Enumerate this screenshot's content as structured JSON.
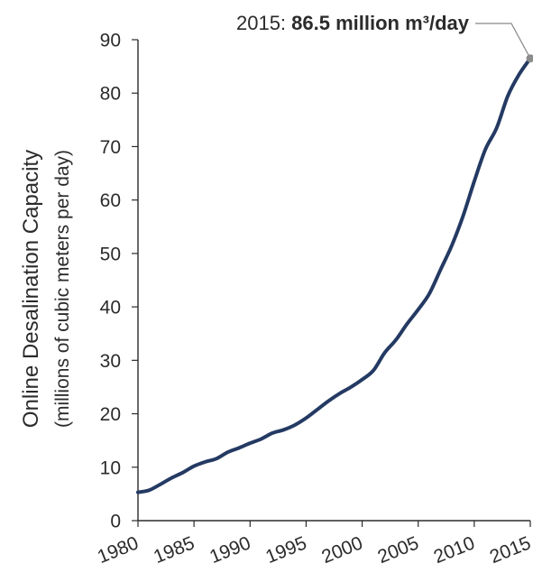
{
  "chart_data": {
    "type": "line",
    "title": "",
    "ylabel": "Online Desalination Capacity",
    "ylabel_sub": "(millions of cubic meters per day)",
    "xlabel": "",
    "xlim": [
      1980,
      2015
    ],
    "ylim": [
      0,
      90
    ],
    "x_ticks": [
      "1980",
      "1985",
      "1990",
      "1995",
      "2000",
      "2005",
      "2010",
      "2015"
    ],
    "y_ticks": [
      "0",
      "10",
      "20",
      "30",
      "40",
      "50",
      "60",
      "70",
      "80",
      "90"
    ],
    "grid": false,
    "series": [
      {
        "color": "#243a63",
        "x": [
          1980,
          1981,
          1982,
          1983,
          1984,
          1985,
          1986,
          1987,
          1988,
          1989,
          1990,
          1991,
          1992,
          1993,
          1994,
          1995,
          1996,
          1997,
          1998,
          1999,
          2000,
          2001,
          2002,
          2003,
          2004,
          2005,
          2006,
          2007,
          2008,
          2009,
          2010,
          2011,
          2012,
          2013,
          2014,
          2015
        ],
        "y": [
          5.3,
          5.7,
          6.8,
          8.0,
          9.0,
          10.2,
          11.0,
          11.6,
          12.8,
          13.6,
          14.5,
          15.3,
          16.4,
          17.0,
          17.9,
          19.2,
          20.8,
          22.4,
          23.8,
          25.0,
          26.4,
          28.1,
          31.4,
          33.8,
          36.8,
          39.5,
          42.5,
          47.0,
          51.5,
          57.0,
          63.5,
          69.5,
          73.5,
          79.5,
          83.5,
          86.5
        ]
      }
    ],
    "annotation": {
      "prefix": "2015: ",
      "value_text": "86.5 million m³/day",
      "x": 2015,
      "y": 86.5
    }
  },
  "colors": {
    "line": "#243a63",
    "axis": "#2b2b2b",
    "marker": "#8c8c8c",
    "leader": "#888888"
  }
}
